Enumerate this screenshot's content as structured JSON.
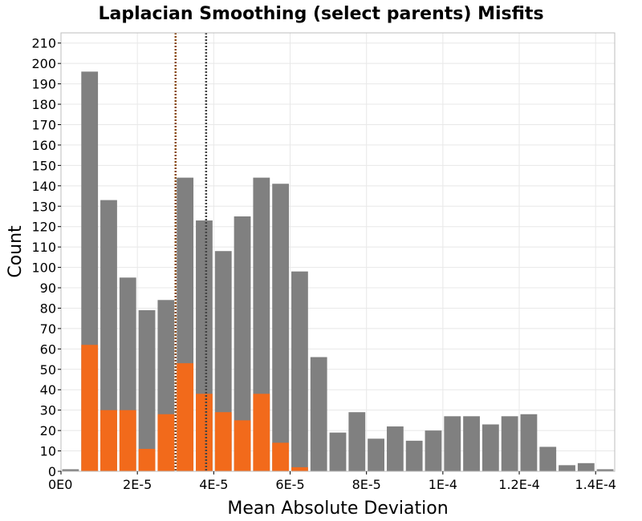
{
  "chart_data": {
    "type": "bar",
    "title": "Laplacian Smoothing (select parents) Misfits",
    "xlabel": "Mean Absolute Deviation",
    "ylabel": "Count",
    "xlim": [
      0,
      0.000145
    ],
    "ylim": [
      0,
      215
    ],
    "bin_width": 5e-06,
    "x_ticks": [
      {
        "value": 0,
        "label": "0E0"
      },
      {
        "value": 2e-05,
        "label": "2E-5"
      },
      {
        "value": 4e-05,
        "label": "4E-5"
      },
      {
        "value": 6e-05,
        "label": "6E-5"
      },
      {
        "value": 8e-05,
        "label": "8E-5"
      },
      {
        "value": 0.0001,
        "label": "1E-4"
      },
      {
        "value": 0.00012,
        "label": "1.2E-4"
      },
      {
        "value": 0.00014,
        "label": "1.4E-4"
      }
    ],
    "y_ticks": [
      0,
      10,
      20,
      30,
      40,
      50,
      60,
      70,
      80,
      90,
      100,
      110,
      120,
      130,
      140,
      150,
      160,
      170,
      180,
      190,
      200,
      210
    ],
    "bin_starts": [
      0,
      5e-06,
      1e-05,
      1.5e-05,
      2e-05,
      2.5e-05,
      3e-05,
      3.5e-05,
      4e-05,
      4.5e-05,
      5e-05,
      5.5e-05,
      6e-05,
      6.5e-05,
      7e-05,
      7.5e-05,
      8e-05,
      8.5e-05,
      9e-05,
      9.5e-05,
      0.0001,
      0.000105,
      0.00011,
      0.000115,
      0.00012,
      0.000125,
      0.00013,
      0.000135,
      0.00014
    ],
    "series": [
      {
        "color": "#808080",
        "values": [
          1,
          196,
          133,
          95,
          79,
          84,
          144,
          123,
          108,
          125,
          144,
          141,
          98,
          56,
          19,
          29,
          16,
          22,
          15,
          20,
          27,
          27,
          23,
          27,
          28,
          12,
          3,
          4,
          1
        ]
      },
      {
        "color": "#f26a1b",
        "values": [
          0,
          62,
          30,
          30,
          11,
          28,
          53,
          38,
          29,
          25,
          38,
          14,
          2,
          0,
          0,
          0,
          0,
          0,
          0,
          0,
          0,
          0,
          0,
          0,
          0,
          0,
          0,
          0,
          0
        ]
      }
    ],
    "reference_lines": [
      {
        "x": 3e-05,
        "color": "#8a4a18",
        "style": "dotted"
      },
      {
        "x": 3.8e-05,
        "color": "#444444",
        "style": "dotted"
      }
    ],
    "grid": true,
    "legend": "none"
  }
}
